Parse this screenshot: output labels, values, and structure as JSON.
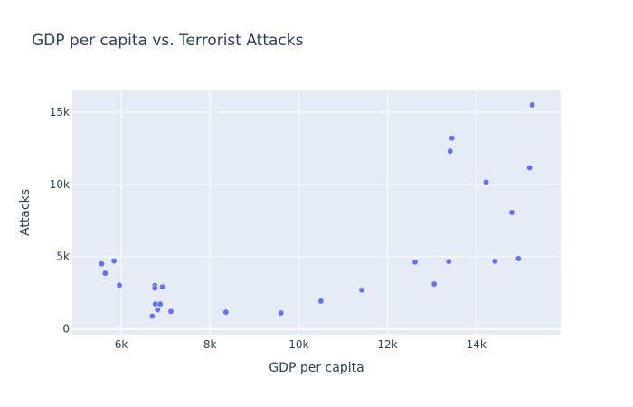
{
  "chart_data": {
    "type": "scatter",
    "title": "GDP per capita vs. Terrorist Attacks",
    "xlabel": "GDP per capita",
    "ylabel": "Attacks",
    "xlim": [
      4900,
      15900
    ],
    "ylim": [
      -400,
      16500
    ],
    "xticks": [
      6000,
      8000,
      10000,
      12000,
      14000
    ],
    "xtick_labels": [
      "6k",
      "8k",
      "10k",
      "12k",
      "14k"
    ],
    "yticks": [
      0,
      5000,
      10000,
      15000
    ],
    "ytick_labels": [
      "0",
      "5k",
      "10k",
      "15k"
    ],
    "grid": true,
    "marker_color": "#636efa",
    "plot_bgcolor": "#e5ecf6",
    "points": [
      {
        "x": 5560,
        "y": 4500
      },
      {
        "x": 5640,
        "y": 3850
      },
      {
        "x": 5840,
        "y": 4700
      },
      {
        "x": 5960,
        "y": 3020
      },
      {
        "x": 6700,
        "y": 880
      },
      {
        "x": 6760,
        "y": 3000
      },
      {
        "x": 6760,
        "y": 2820
      },
      {
        "x": 6770,
        "y": 1720
      },
      {
        "x": 6820,
        "y": 1320
      },
      {
        "x": 6880,
        "y": 1720
      },
      {
        "x": 6930,
        "y": 2900
      },
      {
        "x": 7120,
        "y": 1200
      },
      {
        "x": 8360,
        "y": 1160
      },
      {
        "x": 9600,
        "y": 1100
      },
      {
        "x": 10500,
        "y": 1920
      },
      {
        "x": 11420,
        "y": 2680
      },
      {
        "x": 12620,
        "y": 4620
      },
      {
        "x": 13050,
        "y": 3100
      },
      {
        "x": 13380,
        "y": 4660
      },
      {
        "x": 13410,
        "y": 12300
      },
      {
        "x": 13450,
        "y": 13200
      },
      {
        "x": 14220,
        "y": 10150
      },
      {
        "x": 14420,
        "y": 4680
      },
      {
        "x": 14800,
        "y": 8050
      },
      {
        "x": 14950,
        "y": 4860
      },
      {
        "x": 15200,
        "y": 11150
      },
      {
        "x": 15260,
        "y": 15500
      }
    ]
  }
}
